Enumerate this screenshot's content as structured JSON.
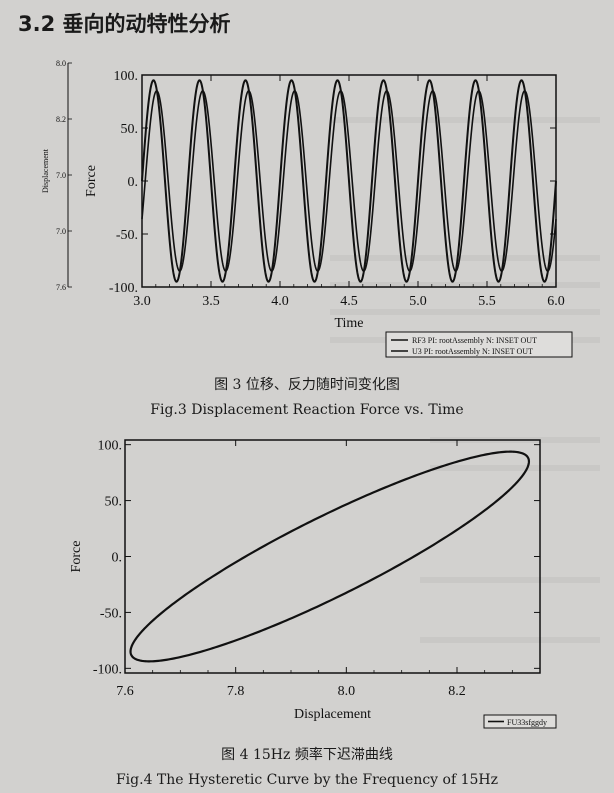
{
  "section_heading": "3.2 垂向的动特性分析",
  "figure3": {
    "caption_cn": "图 3 位移、反力随时间变化图",
    "caption_en": "Fig.3 Displacement Reaction Force vs. Time"
  },
  "figure4": {
    "caption_cn": "图 4 15Hz 频率下迟滞曲线",
    "caption_en": "Fig.4 The Hysteretic Curve by the Frequency of 15Hz"
  },
  "chart_data": [
    {
      "type": "line",
      "xlabel": "Time",
      "ylabel": "Force",
      "ylabel_secondary": "Displacement",
      "xlim": [
        3.0,
        6.0
      ],
      "ylim": [
        -100,
        100
      ],
      "x_ticks": [
        "3.0",
        "3.5",
        "4.0",
        "4.5",
        "5.0",
        "5.5",
        "6.0"
      ],
      "y_ticks": [
        "100.",
        "50.",
        "0.",
        "-50.",
        "-100."
      ],
      "secondary_y_ticks": [
        "8.0",
        "8.2",
        "7.0",
        "7.0",
        "7.6"
      ],
      "series": [
        {
          "name": "RF3 PI: rootAssembly N: INSET OUT",
          "amplitude": 95,
          "frequency_hz": 3,
          "phase_deg": 0
        },
        {
          "name": "U3 PI: rootAssembly N: INSET OUT",
          "amplitude": 85,
          "frequency_hz": 3,
          "phase_deg": -25
        }
      ],
      "legend_position": "bottom-right"
    },
    {
      "type": "line",
      "xlabel": "Displacement",
      "ylabel": "Force",
      "xlim": [
        7.6,
        8.35
      ],
      "ylim": [
        -100,
        100
      ],
      "x_ticks": [
        "7.6",
        "7.8",
        "8.0",
        "8.2"
      ],
      "y_ticks": [
        "100.",
        "50.",
        "0.",
        "-50.",
        "-100."
      ],
      "series": [
        {
          "name": "FU33sfggdy",
          "curve": "ellipse",
          "x_center": 7.97,
          "x_amplitude": 0.36,
          "y_amplitude": 90,
          "phase_lag_deg": 25
        }
      ],
      "legend_position": "bottom-right"
    }
  ]
}
